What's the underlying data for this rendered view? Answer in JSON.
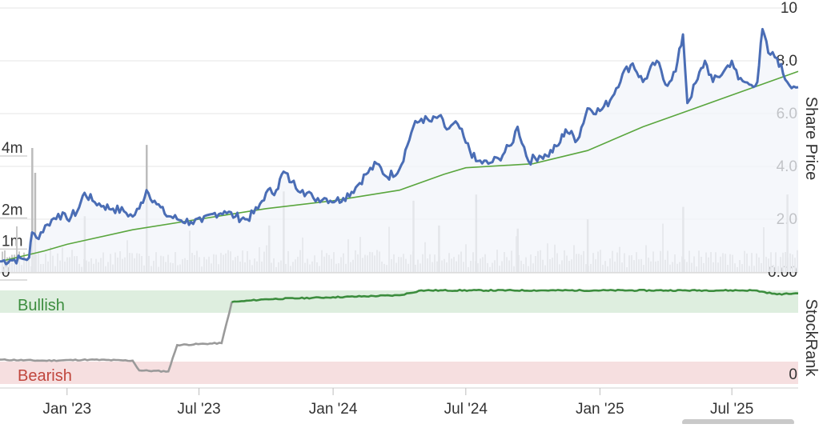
{
  "chart_data": [
    {
      "type": "line",
      "title": "",
      "ylabel_right": "Share Price",
      "ylim_right": [
        0,
        10
      ],
      "right_ticks": [
        "0.00",
        "2.0",
        "4.0",
        "6.0",
        "8.0",
        "10"
      ],
      "left_axis_volume_ticks": [
        "0",
        "1m",
        "2m",
        "4m"
      ],
      "x_ticks": [
        "Jan '23",
        "Jul '23",
        "Jan '24",
        "Jul '24",
        "Jan '25",
        "Jul '25"
      ],
      "x_range": [
        "2022-10-01",
        "2025-09-30"
      ],
      "colors": {
        "price": "#4a6db5",
        "moving_average": "#5aa63e",
        "volume": "#c8c8c8",
        "price_fill": "#f1f4fa"
      },
      "series": [
        {
          "key": "price",
          "points": [
            [
              "2022-10-01",
              0.4
            ],
            [
              "2022-10-15",
              0.45
            ],
            [
              "2022-11-01",
              0.5
            ],
            [
              "2022-11-10",
              0.55
            ],
            [
              "2022-11-14",
              1.5
            ],
            [
              "2022-11-20",
              1.3
            ],
            [
              "2022-12-05",
              1.8
            ],
            [
              "2022-12-20",
              2.2
            ],
            [
              "2023-01-01",
              2.0
            ],
            [
              "2023-01-15",
              2.3
            ],
            [
              "2023-01-25",
              3.0
            ],
            [
              "2023-02-05",
              2.7
            ],
            [
              "2023-02-20",
              2.5
            ],
            [
              "2023-03-05",
              2.4
            ],
            [
              "2023-03-20",
              2.3
            ],
            [
              "2023-04-01",
              2.1
            ],
            [
              "2023-04-10",
              2.4
            ],
            [
              "2023-04-20",
              3.1
            ],
            [
              "2023-05-01",
              2.7
            ],
            [
              "2023-05-15",
              2.2
            ],
            [
              "2023-06-01",
              2.0
            ],
            [
              "2023-06-20",
              1.9
            ],
            [
              "2023-07-05",
              1.9
            ],
            [
              "2023-07-20",
              2.2
            ],
            [
              "2023-08-05",
              2.3
            ],
            [
              "2023-08-20",
              2.1
            ],
            [
              "2023-09-05",
              2.0
            ],
            [
              "2023-09-20",
              2.4
            ],
            [
              "2023-10-01",
              3.0
            ],
            [
              "2023-10-15",
              3.1
            ],
            [
              "2023-10-25",
              3.8
            ],
            [
              "2023-11-05",
              3.4
            ],
            [
              "2023-11-20",
              3.1
            ],
            [
              "2023-12-05",
              2.8
            ],
            [
              "2023-12-20",
              2.8
            ],
            [
              "2024-01-05",
              2.7
            ],
            [
              "2024-01-15",
              2.8
            ],
            [
              "2024-02-01",
              3.2
            ],
            [
              "2024-02-15",
              3.7
            ],
            [
              "2024-03-01",
              4.1
            ],
            [
              "2024-03-15",
              3.6
            ],
            [
              "2024-04-01",
              3.9
            ],
            [
              "2024-04-20",
              5.5
            ],
            [
              "2024-05-01",
              5.8
            ],
            [
              "2024-05-15",
              5.7
            ],
            [
              "2024-05-25",
              5.9
            ],
            [
              "2024-06-05",
              5.4
            ],
            [
              "2024-06-20",
              5.6
            ],
            [
              "2024-07-01",
              4.9
            ],
            [
              "2024-07-15",
              4.2
            ],
            [
              "2024-08-01",
              4.1
            ],
            [
              "2024-08-15",
              4.3
            ],
            [
              "2024-09-01",
              4.8
            ],
            [
              "2024-09-10",
              5.5
            ],
            [
              "2024-09-25",
              4.2
            ],
            [
              "2024-10-10",
              4.4
            ],
            [
              "2024-10-20",
              4.4
            ],
            [
              "2024-11-05",
              4.8
            ],
            [
              "2024-11-15",
              5.4
            ],
            [
              "2024-12-01",
              5.0
            ],
            [
              "2024-12-15",
              6.2
            ],
            [
              "2025-01-01",
              6.1
            ],
            [
              "2025-01-15",
              6.5
            ],
            [
              "2025-02-01",
              7.5
            ],
            [
              "2025-02-15",
              7.9
            ],
            [
              "2025-03-01",
              7.2
            ],
            [
              "2025-03-20",
              8.0
            ],
            [
              "2025-04-01",
              7.1
            ],
            [
              "2025-04-15",
              7.6
            ],
            [
              "2025-04-25",
              9.0
            ],
            [
              "2025-05-01",
              6.4
            ],
            [
              "2025-05-15",
              7.3
            ],
            [
              "2025-05-25",
              8.0
            ],
            [
              "2025-06-05",
              7.2
            ],
            [
              "2025-06-20",
              7.6
            ],
            [
              "2025-07-01",
              8.0
            ],
            [
              "2025-07-10",
              7.3
            ],
            [
              "2025-07-25",
              7.1
            ],
            [
              "2025-08-05",
              7.2
            ],
            [
              "2025-08-12",
              9.2
            ],
            [
              "2025-08-20",
              8.3
            ],
            [
              "2025-09-01",
              8.1
            ],
            [
              "2025-09-15",
              7.2
            ],
            [
              "2025-09-30",
              7.0
            ]
          ]
        },
        {
          "key": "moving_average",
          "points": [
            [
              "2022-10-01",
              0.4
            ],
            [
              "2022-12-01",
              0.8
            ],
            [
              "2023-01-01",
              1.05
            ],
            [
              "2023-04-01",
              1.6
            ],
            [
              "2023-07-01",
              2.0
            ],
            [
              "2023-10-01",
              2.4
            ],
            [
              "2024-01-01",
              2.7
            ],
            [
              "2024-04-01",
              3.1
            ],
            [
              "2024-06-01",
              3.7
            ],
            [
              "2024-07-01",
              3.95
            ],
            [
              "2024-10-01",
              4.1
            ],
            [
              "2024-12-15",
              4.6
            ],
            [
              "2025-03-01",
              5.5
            ],
            [
              "2025-05-01",
              6.1
            ],
            [
              "2025-07-01",
              6.7
            ],
            [
              "2025-09-30",
              7.6
            ]
          ]
        }
      ],
      "volume_spikes_m": [
        [
          "2022-11-14",
          4.0
        ],
        [
          "2022-11-18",
          3.2
        ],
        [
          "2023-01-25",
          1.8
        ],
        [
          "2023-04-20",
          4.1
        ],
        [
          "2023-10-05",
          1.5
        ],
        [
          "2023-10-25",
          2.6
        ],
        [
          "2024-04-20",
          2.3
        ],
        [
          "2024-05-25",
          1.5
        ],
        [
          "2024-07-15",
          2.5
        ],
        [
          "2024-09-10",
          1.4
        ],
        [
          "2024-12-15",
          1.7
        ],
        [
          "2025-04-25",
          2.1
        ],
        [
          "2025-09-15",
          2.5
        ]
      ]
    },
    {
      "type": "line",
      "ylabel_right": "StockRank",
      "bands": [
        {
          "label": "Bullish"
        },
        {
          "label": "Bearish"
        }
      ],
      "right_ticks": [
        "0"
      ],
      "colors": {
        "bullish_band": "#deeedf",
        "bearish_band": "#f6dfe0",
        "bullish_line": "#3c8d3e",
        "low_line": "#9a9a9a",
        "bullish_text": "#3c8d3e",
        "bearish_text": "#c0463d"
      },
      "series": [
        {
          "key": "stockrank",
          "points": [
            [
              "2022-10-01",
              29
            ],
            [
              "2022-12-01",
              28
            ],
            [
              "2023-02-01",
              29
            ],
            [
              "2023-04-01",
              28
            ],
            [
              "2023-04-10",
              18
            ],
            [
              "2023-05-20",
              17
            ],
            [
              "2023-06-01",
              44
            ],
            [
              "2023-08-01",
              46
            ],
            [
              "2023-08-15",
              88
            ],
            [
              "2023-10-01",
              91
            ],
            [
              "2024-01-01",
              93
            ],
            [
              "2024-04-01",
              95
            ],
            [
              "2024-05-01",
              100
            ],
            [
              "2025-08-01",
              100
            ],
            [
              "2025-09-01",
              96
            ],
            [
              "2025-09-30",
              97
            ]
          ]
        }
      ]
    }
  ]
}
